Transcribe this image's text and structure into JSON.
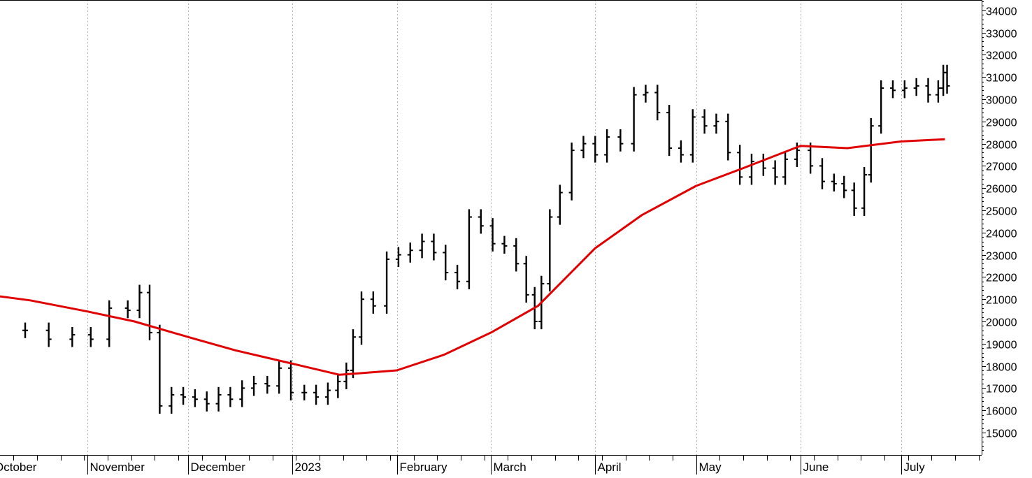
{
  "chart_data": {
    "type": "bar",
    "subtype": "ohlc",
    "title": "",
    "xlabel": "",
    "ylabel": "",
    "ylim": [
      14100,
      34500
    ],
    "y_ticks": [
      15000,
      16000,
      17000,
      18000,
      19000,
      20000,
      21000,
      22000,
      23000,
      24000,
      25000,
      26000,
      27000,
      28000,
      29000,
      30000,
      31000,
      32000,
      33000,
      34000
    ],
    "y_tick_labels": [
      "15000",
      "16000",
      "17000",
      "18000",
      "19000",
      "20000",
      "21000",
      "22000",
      "23000",
      "24000",
      "25000",
      "26000",
      "27000",
      "28000",
      "29000",
      "30000",
      "31000",
      "32000",
      "33000",
      "34000"
    ],
    "grid": "vertical dotted at month starts",
    "months": [
      {
        "label": "October",
        "start": "2022-10-01",
        "end": "2022-10-31"
      },
      {
        "label": "November",
        "start": "2022-11-01",
        "end": "2022-11-30"
      },
      {
        "label": "December",
        "start": "2022-12-01",
        "end": "2022-12-31"
      },
      {
        "label": "2023",
        "start": "2023-01-01",
        "end": "2023-01-31"
      },
      {
        "label": "February",
        "start": "2023-02-01",
        "end": "2023-02-28"
      },
      {
        "label": "March",
        "start": "2023-03-01",
        "end": "2023-03-31"
      },
      {
        "label": "April",
        "start": "2023-04-01",
        "end": "2023-04-30"
      },
      {
        "label": "May",
        "start": "2023-05-01",
        "end": "2023-05-31"
      },
      {
        "label": "June",
        "start": "2023-06-01",
        "end": "2023-06-30"
      },
      {
        "label": "July",
        "start": "2023-07-01",
        "end": "2023-07-31"
      }
    ],
    "series": [
      {
        "kind": "price",
        "color": "#000000",
        "points": [
          [
            "2022-10-10",
            19600
          ],
          [
            "2022-10-17",
            19200
          ],
          [
            "2022-10-24",
            19400
          ],
          [
            "2022-10-31",
            19200
          ],
          [
            "2022-11-04",
            20600
          ],
          [
            "2022-11-11",
            20500
          ],
          [
            "2022-11-15",
            21300
          ],
          [
            "2022-11-18",
            19500
          ],
          [
            "2022-11-21",
            16200
          ],
          [
            "2022-11-24",
            16700
          ],
          [
            "2022-11-28",
            16600
          ],
          [
            "2022-12-01",
            16500
          ],
          [
            "2022-12-05",
            16300
          ],
          [
            "2022-12-08",
            16700
          ],
          [
            "2022-12-12",
            16500
          ],
          [
            "2022-12-15",
            17000
          ],
          [
            "2022-12-19",
            17200
          ],
          [
            "2022-12-22",
            17100
          ],
          [
            "2022-12-27",
            17900
          ],
          [
            "2022-12-29",
            16800
          ],
          [
            "2023-01-03",
            16800
          ],
          [
            "2023-01-06",
            16600
          ],
          [
            "2023-01-10",
            16900
          ],
          [
            "2023-01-13",
            17300
          ],
          [
            "2023-01-16",
            17800
          ],
          [
            "2023-01-18",
            19300
          ],
          [
            "2023-01-20",
            21000
          ],
          [
            "2023-01-23",
            20700
          ],
          [
            "2023-01-27",
            22800
          ],
          [
            "2023-01-31",
            23000
          ],
          [
            "2023-02-03",
            23200
          ],
          [
            "2023-02-07",
            23600
          ],
          [
            "2023-02-10",
            23100
          ],
          [
            "2023-02-14",
            22200
          ],
          [
            "2023-02-17",
            21800
          ],
          [
            "2023-02-21",
            24700
          ],
          [
            "2023-02-24",
            24300
          ],
          [
            "2023-02-28",
            23500
          ],
          [
            "2023-03-03",
            23400
          ],
          [
            "2023-03-07",
            22600
          ],
          [
            "2023-03-10",
            21200
          ],
          [
            "2023-03-13",
            20000
          ],
          [
            "2023-03-15",
            21700
          ],
          [
            "2023-03-17",
            24700
          ],
          [
            "2023-03-20",
            25800
          ],
          [
            "2023-03-23",
            27700
          ],
          [
            "2023-03-27",
            28000
          ],
          [
            "2023-03-30",
            27500
          ],
          [
            "2023-04-03",
            28300
          ],
          [
            "2023-04-06",
            28000
          ],
          [
            "2023-04-11",
            30200
          ],
          [
            "2023-04-14",
            30300
          ],
          [
            "2023-04-18",
            29400
          ],
          [
            "2023-04-21",
            27800
          ],
          [
            "2023-04-25",
            27500
          ],
          [
            "2023-04-28",
            29200
          ],
          [
            "2023-05-02",
            28800
          ],
          [
            "2023-05-05",
            29000
          ],
          [
            "2023-05-09",
            27600
          ],
          [
            "2023-05-12",
            26500
          ],
          [
            "2023-05-16",
            27200
          ],
          [
            "2023-05-19",
            26900
          ],
          [
            "2023-05-23",
            26500
          ],
          [
            "2023-05-26",
            27300
          ],
          [
            "2023-05-29",
            27700
          ],
          [
            "2023-06-02",
            27000
          ],
          [
            "2023-06-06",
            26300
          ],
          [
            "2023-06-09",
            26200
          ],
          [
            "2023-06-13",
            25900
          ],
          [
            "2023-06-15",
            25100
          ],
          [
            "2023-06-19",
            26600
          ],
          [
            "2023-06-21",
            28800
          ],
          [
            "2023-06-23",
            30500
          ],
          [
            "2023-06-27",
            30400
          ],
          [
            "2023-06-30",
            30500
          ],
          [
            "2023-07-04",
            30600
          ],
          [
            "2023-07-07",
            30200
          ],
          [
            "2023-07-11",
            30500
          ],
          [
            "2023-07-13",
            31200
          ],
          [
            "2023-07-14",
            30600
          ]
        ]
      },
      {
        "kind": "moving average",
        "color": "#e00000",
        "points": [
          [
            "2022-09-30",
            21250
          ],
          [
            "2022-10-15",
            20950
          ],
          [
            "2022-11-01",
            20450
          ],
          [
            "2022-11-15",
            20000
          ],
          [
            "2022-12-01",
            19300
          ],
          [
            "2022-12-15",
            18700
          ],
          [
            "2023-01-01",
            18100
          ],
          [
            "2023-01-15",
            17600
          ],
          [
            "2023-02-01",
            17800
          ],
          [
            "2023-02-15",
            18500
          ],
          [
            "2023-03-01",
            19500
          ],
          [
            "2023-03-15",
            20700
          ],
          [
            "2023-04-01",
            23300
          ],
          [
            "2023-04-15",
            24800
          ],
          [
            "2023-05-01",
            26100
          ],
          [
            "2023-05-15",
            26900
          ],
          [
            "2023-06-01",
            27900
          ],
          [
            "2023-06-15",
            27800
          ],
          [
            "2023-07-01",
            28100
          ],
          [
            "2023-07-14",
            28200
          ]
        ]
      }
    ]
  }
}
